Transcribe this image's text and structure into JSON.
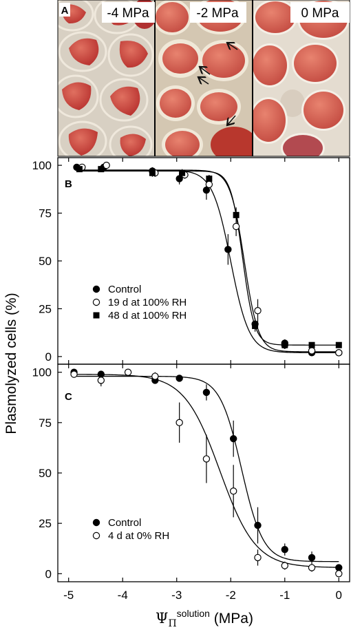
{
  "panel_a": {
    "label": "A",
    "photos": [
      {
        "label": "-4 MPa",
        "state": "plasmolyzed"
      },
      {
        "label": "-2 MPa",
        "state": "incipient",
        "arrows": 4
      },
      {
        "label": "0 MPa",
        "state": "turgid"
      }
    ],
    "colors": {
      "cytoplasm": "#c7423f",
      "background": "#d9cfc0",
      "cell_wall": "#f2ede4"
    }
  },
  "y_axis_label": "Plasmolyzed cells (%)",
  "x_axis_label": {
    "symbol": "Ψ",
    "subscript": "Π",
    "superscript": "solution",
    "unit": "(MPa)"
  },
  "chart_data": [
    {
      "panel": "B",
      "type": "scatter",
      "xlim": [
        -5.2,
        0.2
      ],
      "ylim": [
        -4,
        104
      ],
      "yticks": [
        0,
        25,
        50,
        75,
        100
      ],
      "series": [
        {
          "name": "Control",
          "marker": "filled-circle",
          "x": [
            -4.85,
            -4.35,
            -3.45,
            -2.95,
            -2.45,
            -2.05,
            -1.55,
            -1.0,
            -0.5,
            0.0
          ],
          "y": [
            99,
            99,
            97,
            93,
            87,
            56,
            17,
            7,
            2,
            2
          ],
          "err": [
            1,
            1,
            2,
            3,
            5,
            8,
            3,
            2,
            1,
            1
          ],
          "fit": {
            "bottom": 2,
            "top": 97.5,
            "x0": -2.0,
            "slope": 0.17
          }
        },
        {
          "name": "19 d at 100% RH",
          "marker": "open-circle",
          "x": [
            -4.75,
            -4.3,
            -3.4,
            -2.85,
            -2.4,
            -1.9,
            -1.5,
            -1.0,
            -0.5,
            0.0
          ],
          "y": [
            99,
            100,
            96,
            95,
            90,
            68,
            24,
            6,
            3,
            2
          ],
          "err": [
            1,
            1,
            2,
            2,
            3,
            5,
            6,
            2,
            1,
            1
          ],
          "fit": {
            "bottom": 2.5,
            "top": 97.5,
            "x0": -1.75,
            "slope": 0.13
          }
        },
        {
          "name": "48 d at 100% RH",
          "marker": "filled-square",
          "x": [
            -4.8,
            -4.4,
            -3.45,
            -2.9,
            -2.4,
            -1.9,
            -1.55,
            -1.0,
            -0.5,
            0.0
          ],
          "y": [
            98,
            98,
            96,
            96,
            93,
            74,
            16,
            6,
            6,
            6
          ],
          "err": [
            1,
            1,
            2,
            2,
            2,
            4,
            3,
            2,
            1,
            1
          ],
          "fit": {
            "bottom": 6,
            "top": 97,
            "x0": -1.78,
            "slope": 0.11
          }
        }
      ],
      "legend": [
        "Control",
        "19 d at 100% RH",
        "48 d at 100% RH"
      ]
    },
    {
      "panel": "C",
      "type": "scatter",
      "xlim": [
        -5.2,
        0.2
      ],
      "ylim": [
        -4,
        104
      ],
      "xticks": [
        -5,
        -4,
        -3,
        -2,
        -1,
        0
      ],
      "yticks": [
        0,
        25,
        50,
        75,
        100
      ],
      "series": [
        {
          "name": "Control",
          "marker": "filled-circle",
          "x": [
            -4.9,
            -4.4,
            -3.4,
            -2.95,
            -2.45,
            -1.95,
            -1.5,
            -1.0,
            -0.5,
            0.0
          ],
          "y": [
            100,
            99,
            96,
            97,
            90,
            67,
            24,
            12,
            8,
            3
          ],
          "err": [
            1,
            1,
            1,
            1,
            4,
            9,
            9,
            3,
            3,
            1
          ],
          "fit": {
            "bottom": 6,
            "top": 98,
            "x0": -1.8,
            "slope": 0.2
          }
        },
        {
          "name": "4 d at 0% RH",
          "marker": "open-circle",
          "x": [
            -4.9,
            -4.4,
            -3.9,
            -3.4,
            -2.95,
            -2.45,
            -1.95,
            -1.5,
            -1.0,
            -0.5,
            0.0
          ],
          "y": [
            99,
            96,
            100,
            98,
            75,
            57,
            41,
            8,
            4,
            3,
            0
          ],
          "err": [
            1,
            3,
            1,
            2,
            10,
            12,
            13,
            4,
            2,
            2,
            1
          ],
          "fit": {
            "bottom": 3,
            "top": 99,
            "x0": -2.2,
            "slope": 0.33
          }
        }
      ],
      "legend": [
        "Control",
        "4 d at 0% RH"
      ]
    }
  ]
}
